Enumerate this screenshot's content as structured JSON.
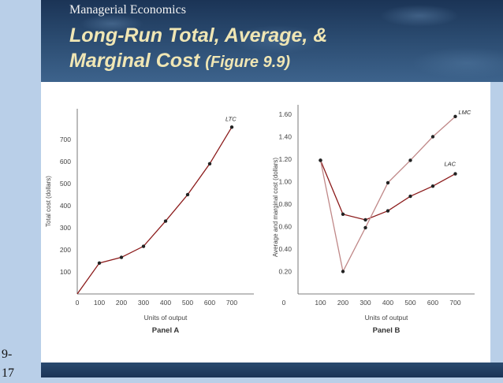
{
  "slide": {
    "subtitle": "Managerial Economics",
    "title_line1": "Long-Run Total, Average, &",
    "title_line2": "Marginal Cost",
    "title_figure": "(Figure 9.9)",
    "page_number": "9-\n17"
  },
  "colors": {
    "line": "#8b1a1a",
    "line_light": "#c08888",
    "axis": "#555555",
    "text": "#444444"
  },
  "chart_data": [
    {
      "type": "line",
      "panel_label": "Panel A",
      "xlabel": "Units of output",
      "ylabel": "Total cost (dollars)",
      "x_ticks": [
        "0",
        "100",
        "200",
        "300",
        "400",
        "500",
        "600",
        "700"
      ],
      "y_ticks": [
        "100",
        "200",
        "300",
        "400",
        "500",
        "600",
        "700"
      ],
      "xlim": [
        0,
        750
      ],
      "ylim": [
        0,
        790
      ],
      "series": [
        {
          "name": "LTC",
          "x": [
            0,
            100,
            200,
            300,
            400,
            500,
            600,
            700
          ],
          "y": [
            0,
            140,
            166,
            216,
            330,
            450,
            590,
            756
          ]
        }
      ]
    },
    {
      "type": "line",
      "panel_label": "Panel B",
      "xlabel": "Units of output",
      "ylabel": "Average and marginal cost (dollars)",
      "x_ticks": [
        "0",
        "100",
        "200",
        "300",
        "400",
        "500",
        "600",
        "700"
      ],
      "y_ticks": [
        "0.20",
        "0.40",
        "0.60",
        "0.80",
        "1.00",
        "1.20",
        "1.40",
        "1.60"
      ],
      "xlim": [
        0,
        750
      ],
      "ylim": [
        0,
        1.7
      ],
      "series": [
        {
          "name": "LAC",
          "x": [
            100,
            200,
            300,
            400,
            500,
            600,
            700
          ],
          "y": [
            1.19,
            0.71,
            0.66,
            0.74,
            0.87,
            0.96,
            1.07
          ]
        },
        {
          "name": "LMC",
          "x": [
            100,
            200,
            300,
            400,
            500,
            600,
            700
          ],
          "y": [
            1.19,
            0.2,
            0.59,
            0.99,
            1.19,
            1.4,
            1.58
          ]
        }
      ]
    }
  ]
}
